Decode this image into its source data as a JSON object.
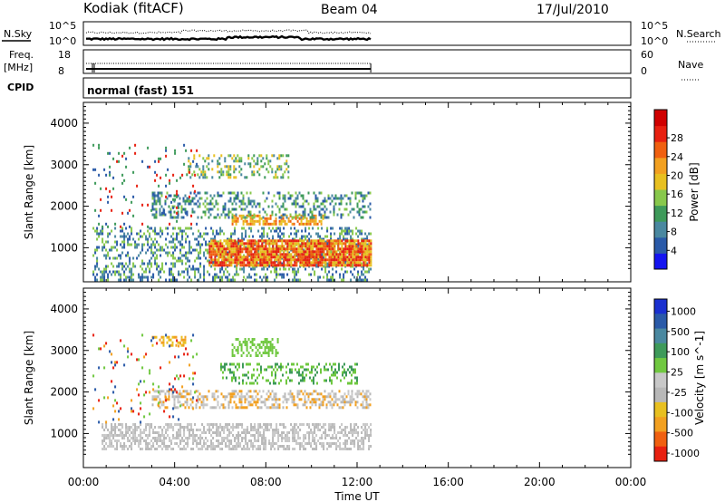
{
  "header": {
    "station": "Kodiak (fitACF)",
    "beam": "Beam 04",
    "date": "17/Jul/2010"
  },
  "status_panels": {
    "nsky": {
      "label": "N.Sky",
      "ticks": [
        "10^5",
        "10^0"
      ]
    },
    "nsearch": {
      "label": "N.Search",
      "ticks": [
        "10^5",
        "10^0"
      ]
    },
    "freq": {
      "label_line1": "Freq.",
      "label_line2": "[MHz]",
      "ticks": [
        "18",
        "8"
      ]
    },
    "nave": {
      "label": "Nave",
      "ticks": [
        "60",
        "0"
      ]
    },
    "cpid": {
      "label": "CPID",
      "value": "normal (fast) 151"
    }
  },
  "chart_data": [
    {
      "type": "heatmap",
      "title": "",
      "xlabel": "",
      "ylabel": "Slant Range [km]",
      "x_ticks": [
        "00:00",
        "04:00",
        "08:00",
        "12:00",
        "16:00",
        "20:00",
        "00:00"
      ],
      "xlim_hours": [
        0,
        24
      ],
      "ylim_km": [
        180,
        4500
      ],
      "y_ticks": [
        1000,
        2000,
        3000,
        4000
      ],
      "data_end_hours": 12.6,
      "colorbar": {
        "label": "Power [dB]",
        "ticks": [
          "4",
          "8",
          "12",
          "16",
          "20",
          "24",
          "28"
        ],
        "colors": [
          "#1414f0",
          "#2a5aa8",
          "#4a88a0",
          "#3e9a5a",
          "#88c84c",
          "#e8c020",
          "#f2a020",
          "#f06010",
          "#e82010",
          "#d00000"
        ]
      },
      "regions": [
        {
          "t0": 0.4,
          "t1": 12.6,
          "r0": 250,
          "r1": 1500,
          "density": 0.35,
          "colors": [
            "#2a5aa8",
            "#4a88a0",
            "#88c84c"
          ]
        },
        {
          "t0": 5.5,
          "t1": 12.6,
          "r0": 600,
          "r1": 1200,
          "density": 0.9,
          "colors": [
            "#e82010",
            "#f06010",
            "#e8c020"
          ]
        },
        {
          "t0": 6.5,
          "t1": 10.5,
          "r0": 1550,
          "r1": 1800,
          "density": 0.6,
          "colors": [
            "#f2a020",
            "#e8c020",
            "#f06010"
          ]
        },
        {
          "t0": 3.0,
          "t1": 12.6,
          "r0": 1700,
          "r1": 2350,
          "density": 0.35,
          "colors": [
            "#2a5aa8",
            "#4a88a0",
            "#3e9a5a",
            "#88c84c"
          ]
        },
        {
          "t0": 4.5,
          "t1": 9.0,
          "r0": 2700,
          "r1": 3250,
          "density": 0.3,
          "colors": [
            "#4a88a0",
            "#3e9a5a",
            "#88c84c",
            "#e8c020"
          ]
        },
        {
          "t0": 0.4,
          "t1": 5.0,
          "r0": 1500,
          "r1": 3500,
          "density": 0.06,
          "colors": [
            "#2a5aa8",
            "#e82010",
            "#3e9a5a"
          ]
        }
      ]
    },
    {
      "type": "heatmap",
      "title": "",
      "xlabel": "Time UT",
      "ylabel": "Slant Range [km]",
      "x_ticks": [
        "00:00",
        "04:00",
        "08:00",
        "12:00",
        "16:00",
        "20:00",
        "00:00"
      ],
      "xlim_hours": [
        0,
        24
      ],
      "ylim_km": [
        180,
        4500
      ],
      "y_ticks": [
        1000,
        2000,
        3000,
        4000
      ],
      "data_end_hours": 12.6,
      "colorbar": {
        "label": "Velocity [m s^-1]",
        "ticks": [
          "1000",
          "500",
          "100",
          "25",
          "-25",
          "-100",
          "-500",
          "-1000"
        ],
        "colors": [
          "#1a30d0",
          "#2a5aa8",
          "#4a88a0",
          "#3e9a5a",
          "#70c840",
          "#c8c8c8",
          "#b8b8b8",
          "#e8c020",
          "#f2a020",
          "#f06010",
          "#e82010"
        ]
      },
      "regions": [
        {
          "t0": 0.8,
          "t1": 12.6,
          "r0": 650,
          "r1": 1250,
          "density": 0.55,
          "colors": [
            "#c8c8c8",
            "#b8b8b8"
          ]
        },
        {
          "t0": 3.0,
          "t1": 12.6,
          "r0": 1650,
          "r1": 2050,
          "density": 0.45,
          "colors": [
            "#c8c8c8",
            "#b8b8b8",
            "#f2a020"
          ]
        },
        {
          "t0": 6.0,
          "t1": 12.0,
          "r0": 2200,
          "r1": 2700,
          "density": 0.35,
          "colors": [
            "#70c840",
            "#3e9a5a"
          ]
        },
        {
          "t0": 6.5,
          "t1": 8.5,
          "r0": 2900,
          "r1": 3300,
          "density": 0.45,
          "colors": [
            "#70c840"
          ]
        },
        {
          "t0": 3.0,
          "t1": 4.5,
          "r0": 3100,
          "r1": 3350,
          "density": 0.45,
          "colors": [
            "#f2a020",
            "#e8c020"
          ]
        },
        {
          "t0": 0.4,
          "t1": 5.0,
          "r0": 1300,
          "r1": 3400,
          "density": 0.06,
          "colors": [
            "#e82010",
            "#2a5aa8",
            "#f2a020",
            "#70c840"
          ]
        }
      ]
    }
  ]
}
